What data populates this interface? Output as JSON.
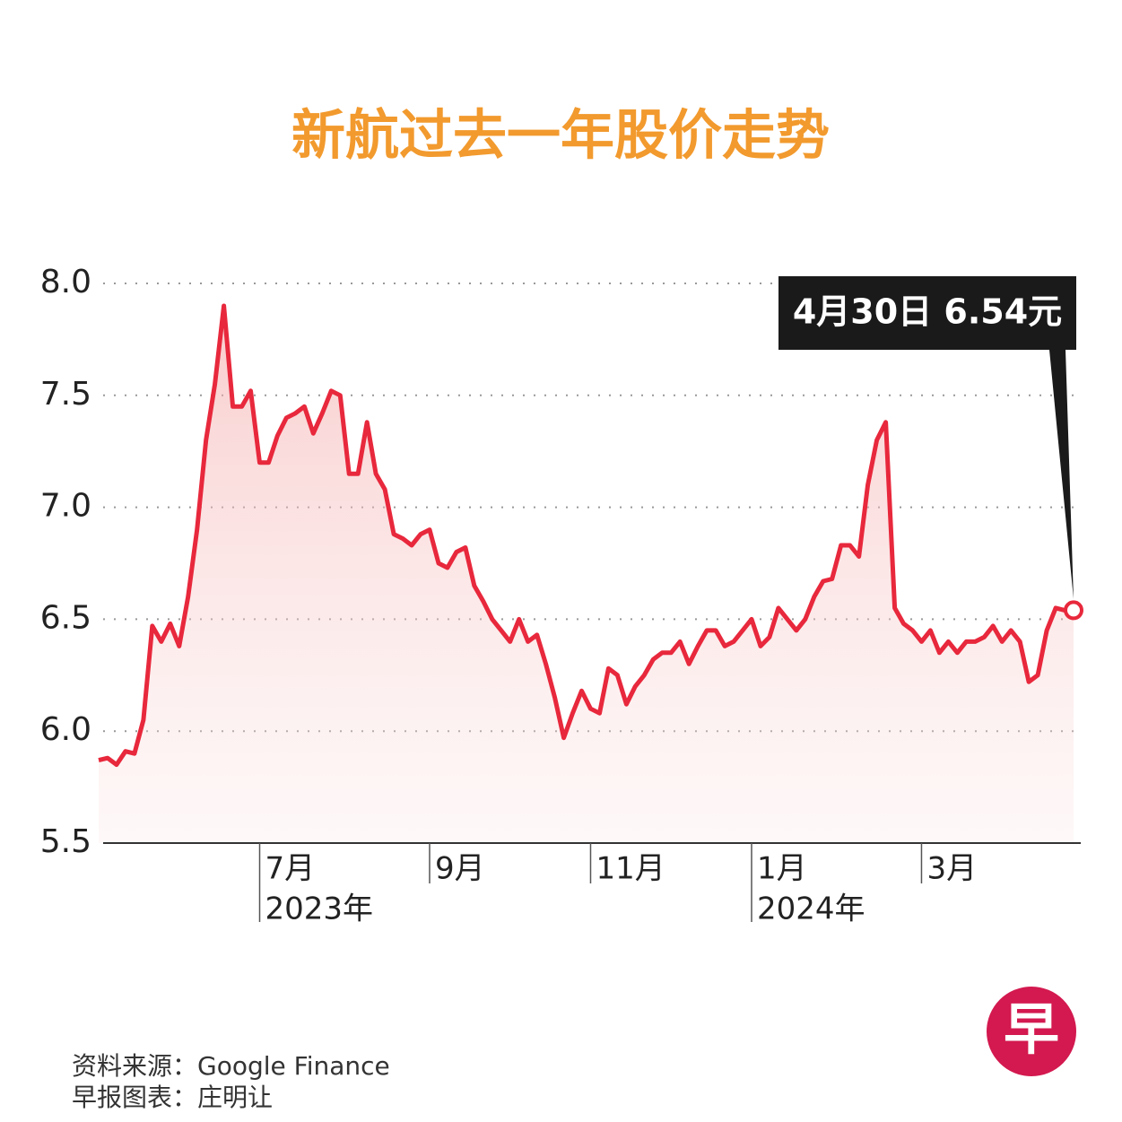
{
  "chart_data": {
    "type": "area",
    "title": "新航过去一年股价走势",
    "annotation": "4月30日  6.54元",
    "source": "资料来源：Google Finance",
    "credit": "早报图表：庄明让",
    "logo": "早",
    "color": "#e8283c",
    "title_color": "#f29a2e",
    "grid": true,
    "ylim": [
      5.5,
      8.0
    ],
    "yticks": [
      5.5,
      {
        "value": 6,
        "label": "6.0"
      },
      6.5,
      {
        "value": 7,
        "label": "7.0"
      },
      7.5,
      {
        "value": 8,
        "label": "8.0"
      }
    ],
    "categories": [
      null,
      null,
      null,
      null,
      null,
      null,
      null,
      null,
      null,
      null,
      null,
      null,
      null,
      null,
      null,
      null,
      null,
      null,
      "7月",
      null,
      null,
      null,
      null,
      null,
      null,
      null,
      null,
      null,
      null,
      null,
      null,
      null,
      null,
      null,
      null,
      null,
      null,
      "9月",
      null,
      null,
      null,
      null,
      null,
      null,
      null,
      null,
      null,
      null,
      null,
      null,
      null,
      null,
      null,
      null,
      null,
      "11月",
      null,
      null,
      null,
      null,
      null,
      null,
      null,
      null,
      null,
      null,
      null,
      null,
      null,
      null,
      null,
      null,
      null,
      "1月",
      null,
      null,
      null,
      null,
      null,
      null,
      null,
      null,
      null,
      null,
      null,
      null,
      null,
      null,
      null,
      null,
      null,
      null,
      "3月",
      null,
      null,
      null,
      null,
      null,
      null,
      null,
      null,
      null,
      null,
      null,
      null,
      null,
      null,
      null,
      null,
      null
    ],
    "years": [
      null,
      null,
      null,
      null,
      null,
      null,
      null,
      null,
      null,
      null,
      null,
      null,
      null,
      null,
      null,
      null,
      null,
      null,
      "2023年",
      null,
      null,
      null,
      null,
      null,
      null,
      null,
      null,
      null,
      null,
      null,
      null,
      null,
      null,
      null,
      null,
      null,
      null,
      null,
      null,
      null,
      null,
      null,
      null,
      null,
      null,
      null,
      null,
      null,
      null,
      null,
      null,
      null,
      null,
      null,
      null,
      null,
      null,
      null,
      null,
      null,
      null,
      null,
      null,
      null,
      null,
      null,
      null,
      null,
      null,
      null,
      null,
      null,
      null,
      "2024年",
      null,
      null,
      null,
      null,
      null,
      null,
      null,
      null,
      null,
      null,
      null,
      null,
      null,
      null,
      null,
      null,
      null,
      null,
      null,
      null,
      null,
      null,
      null,
      null,
      null,
      null,
      null,
      null,
      null,
      null,
      null,
      null,
      null,
      null,
      null,
      null
    ],
    "values": [
      5.87,
      5.88,
      5.85,
      5.91,
      5.9,
      6.05,
      6.47,
      6.4,
      6.48,
      6.38,
      6.6,
      6.9,
      7.3,
      7.55,
      7.9,
      7.45,
      7.45,
      7.52,
      7.2,
      7.2,
      7.32,
      7.4,
      7.42,
      7.45,
      7.33,
      7.42,
      7.52,
      7.5,
      7.15,
      7.15,
      7.38,
      7.15,
      7.08,
      6.88,
      6.86,
      6.83,
      6.88,
      6.9,
      6.75,
      6.73,
      6.8,
      6.82,
      6.65,
      6.58,
      6.5,
      6.45,
      6.4,
      6.5,
      6.4,
      6.43,
      6.3,
      6.15,
      5.97,
      6.08,
      6.18,
      6.1,
      6.08,
      6.28,
      6.25,
      6.12,
      6.2,
      6.25,
      6.32,
      6.35,
      6.35,
      6.4,
      6.3,
      6.38,
      6.45,
      6.45,
      6.38,
      6.4,
      6.45,
      6.5,
      6.38,
      6.42,
      6.55,
      6.5,
      6.45,
      6.5,
      6.6,
      6.67,
      6.68,
      6.83,
      6.83,
      6.78,
      7.1,
      7.3,
      7.38,
      6.55,
      6.48,
      6.45,
      6.4,
      6.45,
      6.35,
      6.4,
      6.35,
      6.4,
      6.4,
      6.42,
      6.47,
      6.4,
      6.45,
      6.4,
      6.22,
      6.25,
      6.45,
      6.55,
      6.54,
      6.54
    ]
  }
}
